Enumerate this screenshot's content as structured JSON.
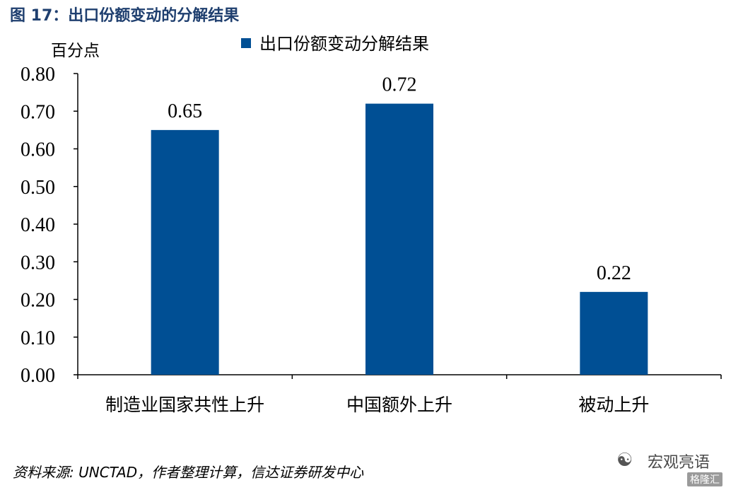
{
  "figure_title": "图 17：出口份额变动的分解结果",
  "source": "资料来源:  UNCTAD，作者整理计算，信达证券研发中心",
  "watermark": {
    "text": "宏观亮语",
    "logo_text": "格隆汇"
  },
  "colors": {
    "bar": "#004f94",
    "title": "#1f3f6f",
    "axis": "#000000"
  },
  "chart_data": {
    "type": "bar",
    "ylabel": "百分点",
    "xlabel": "",
    "categories": [
      "制造业国家共性上升",
      "中国额外上升",
      "被动上升"
    ],
    "series": [
      {
        "name": "出口份额变动分解结果",
        "values": [
          0.65,
          0.72,
          0.22
        ]
      }
    ],
    "data_labels": [
      "0.65",
      "0.72",
      "0.22"
    ],
    "ylim": [
      0,
      0.8
    ],
    "yticks": [
      "0.00",
      "0.10",
      "0.20",
      "0.30",
      "0.40",
      "0.50",
      "0.60",
      "0.70",
      "0.80"
    ],
    "grid": false,
    "legend_position": "top-center"
  }
}
